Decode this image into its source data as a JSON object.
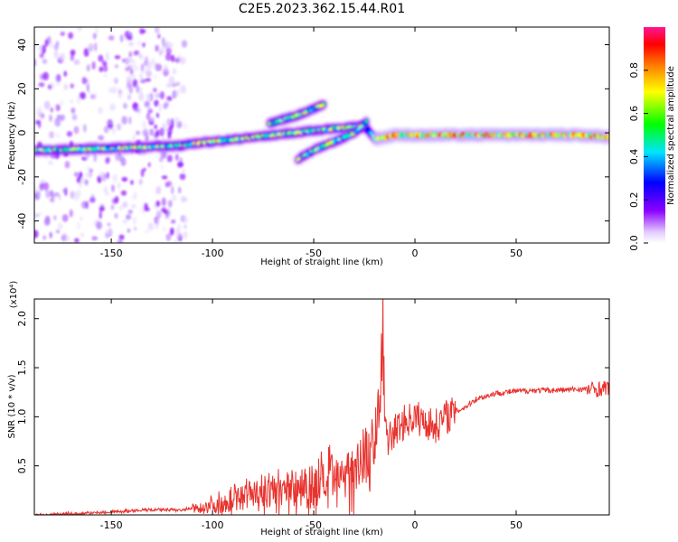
{
  "title": "C2E5.2023.362.15.44.R01",
  "colors": {
    "snr_line": "#e8332e",
    "axis": "#000000",
    "background": "#ffffff"
  },
  "chart_data": [
    {
      "type": "heatmap",
      "xlabel": "Height of straight line (km)",
      "ylabel": "Frequency (Hz)",
      "xlim": [
        -188,
        96
      ],
      "ylim": [
        -50,
        48
      ],
      "x_ticks": [
        -150,
        -100,
        -50,
        0,
        50
      ],
      "y_ticks": [
        -40,
        -20,
        0,
        20,
        40
      ],
      "grid": false,
      "colorbar": {
        "label": "Normalized spectral amplitude",
        "range": [
          0,
          1
        ],
        "ticks": [
          0.0,
          0.2,
          0.4,
          0.6,
          0.8
        ],
        "colormap": "rainbow"
      },
      "tracks": [
        {
          "x": [
            -188,
            -150,
            -120,
            -100,
            -80,
            -60,
            -40,
            -25,
            -20
          ],
          "y": [
            -8,
            -7,
            -6,
            -4,
            -2,
            0,
            2,
            3,
            -2
          ]
        },
        {
          "x": [
            -72,
            -65,
            -58,
            -50,
            -45
          ],
          "y": [
            4,
            6,
            8,
            11,
            13
          ]
        },
        {
          "x": [
            -58,
            -50,
            -40,
            -30,
            -24
          ],
          "y": [
            -12,
            -8,
            -4,
            0,
            5
          ]
        },
        {
          "x": [
            -20,
            -10,
            0,
            20,
            40,
            60,
            80,
            96
          ],
          "y": [
            -3,
            -1,
            -1,
            -1,
            -1,
            -1,
            -1,
            -2
          ]
        }
      ]
    },
    {
      "type": "line",
      "xlabel": "Height of straight line (km)",
      "ylabel": "SNR (10 * v/v)",
      "y_multiplier": "(x10⁴)",
      "xlim": [
        -188,
        96
      ],
      "ylim": [
        0,
        2.2
      ],
      "x_ticks": [
        -150,
        -100,
        -50,
        0,
        50
      ],
      "y_ticks": [
        0.5,
        1.0,
        1.5,
        2.0
      ],
      "y_tick_labels": [
        "0.5",
        "1.0",
        "1.5",
        "2.0"
      ],
      "grid": false,
      "series": [
        {
          "x": [
            -188,
            -170,
            -150,
            -130,
            -115,
            -105,
            -95,
            -85,
            -75,
            -65,
            -55,
            -45,
            -38,
            -32,
            -28,
            -24,
            -22,
            -20,
            -18,
            -17,
            -16,
            -15,
            -14,
            -12,
            -10,
            -8,
            -5,
            0,
            5,
            10,
            15,
            20,
            25,
            30,
            40,
            50,
            60,
            70,
            80,
            90,
            96
          ],
          "y": [
            0.0,
            0.01,
            0.03,
            0.05,
            0.05,
            0.08,
            0.12,
            0.2,
            0.22,
            0.25,
            0.3,
            0.32,
            0.35,
            0.45,
            0.55,
            0.65,
            0.6,
            0.8,
            0.9,
            1.2,
            2.2,
            1.3,
            0.7,
            0.8,
            0.85,
            0.9,
            0.95,
            1.0,
            0.95,
            0.9,
            1.0,
            1.05,
            1.1,
            1.18,
            1.24,
            1.26,
            1.27,
            1.27,
            1.28,
            1.28,
            1.3
          ]
        }
      ]
    }
  ]
}
